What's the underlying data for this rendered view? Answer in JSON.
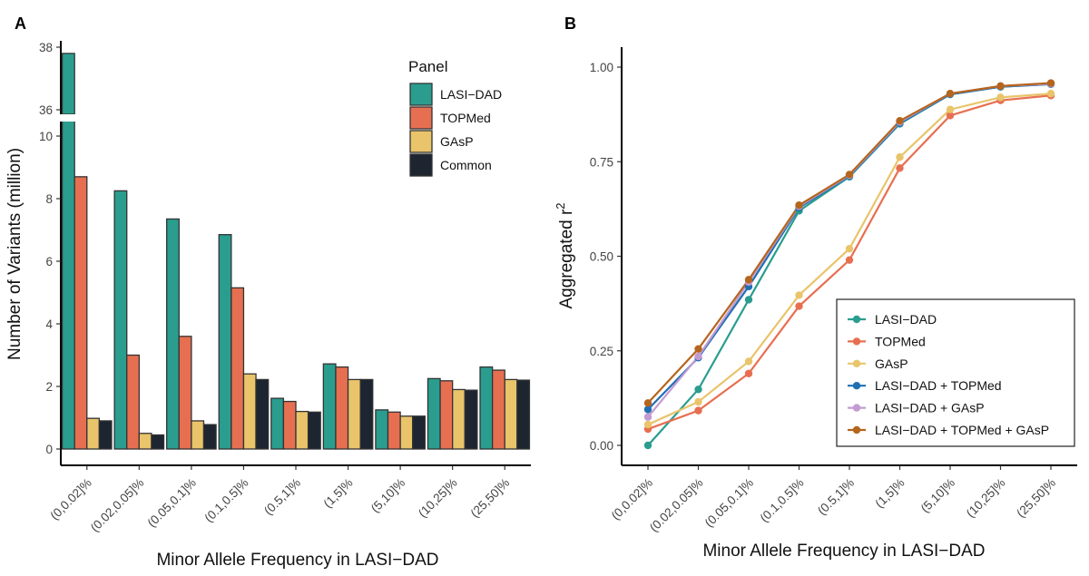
{
  "chart_data": [
    {
      "panel_label": "A",
      "type": "bar",
      "title": "",
      "xlabel": "Minor Allele Frequency in LASI−DAD",
      "ylabel": "Number of Variants (million)",
      "categories": [
        "(0,0.02]%",
        "(0.02,0.05]%",
        "(0.05,0.1]%",
        "(0.1,0.5]%",
        "(0.5,1]%",
        "(1,5]%",
        "(5,10]%",
        "(10,25]%",
        "(25,50]%"
      ],
      "axis_break": {
        "lower_ylim": [
          0,
          10.5
        ],
        "upper_ylim": [
          35.9,
          38.2
        ]
      },
      "yticks_lower": [
        "0",
        "2",
        "4",
        "6",
        "8",
        "10"
      ],
      "yticks_upper": [
        "36",
        "38"
      ],
      "legend_title": "Panel",
      "legend_position": "top-right",
      "series": [
        {
          "name": "LASI−DAD",
          "color": "#2a9d8f",
          "values": [
            37.8,
            8.25,
            7.35,
            6.85,
            1.62,
            2.72,
            1.25,
            2.25,
            2.62
          ]
        },
        {
          "name": "TOPMed",
          "color": "#e76f51",
          "values": [
            8.7,
            3.0,
            3.6,
            5.15,
            1.52,
            2.62,
            1.18,
            2.18,
            2.52
          ]
        },
        {
          "name": "GAsP",
          "color": "#e9c46a",
          "values": [
            0.98,
            0.5,
            0.9,
            2.4,
            1.2,
            2.22,
            1.05,
            1.9,
            2.22
          ]
        },
        {
          "name": "Common",
          "color": "#1c2530",
          "values": [
            0.9,
            0.45,
            0.78,
            2.22,
            1.18,
            2.22,
            1.05,
            1.88,
            2.2
          ]
        }
      ]
    },
    {
      "panel_label": "B",
      "type": "line",
      "title": "",
      "xlabel": "Minor Allele Frequency in LASI−DAD",
      "ylabel": "Aggregated r",
      "ylabel_superscript": "2",
      "categories": [
        "(0,0.02]%",
        "(0.02,0.05]%",
        "(0.05,0.1]%",
        "(0.1,0.5]%",
        "(0.5,1]%",
        "(1,5]%",
        "(5,10]%",
        "(10,25]%",
        "(25,50]%"
      ],
      "ylim": [
        -0.05,
        1.05
      ],
      "yticks": [
        "0.00",
        "0.25",
        "0.50",
        "0.75",
        "1.00"
      ],
      "legend_position": "bottom-right",
      "series": [
        {
          "name": "LASI−DAD",
          "color": "#2a9d8f",
          "values": [
            0.0,
            0.148,
            0.385,
            0.62,
            0.71,
            0.85,
            0.928,
            0.948,
            0.955
          ]
        },
        {
          "name": "TOPMed",
          "color": "#e76f51",
          "values": [
            0.043,
            0.092,
            0.19,
            0.368,
            0.49,
            0.733,
            0.872,
            0.912,
            0.925
          ]
        },
        {
          "name": "GAsP",
          "color": "#e9c46a",
          "values": [
            0.055,
            0.115,
            0.222,
            0.397,
            0.52,
            0.762,
            0.888,
            0.92,
            0.93
          ]
        },
        {
          "name": "LASI−DAD + TOPMed",
          "color": "#1f6fb2",
          "values": [
            0.095,
            0.232,
            0.42,
            0.628,
            0.712,
            0.852,
            0.928,
            0.948,
            0.955
          ]
        },
        {
          "name": "LASI−DAD + GAsP",
          "color": "#c39bd3",
          "values": [
            0.075,
            0.235,
            0.432,
            0.632,
            0.714,
            0.855,
            0.93,
            0.95,
            0.956
          ]
        },
        {
          "name": "LASI−DAD + TOPMed + GAsP",
          "color": "#b5651d",
          "values": [
            0.112,
            0.255,
            0.438,
            0.635,
            0.716,
            0.858,
            0.93,
            0.95,
            0.958
          ]
        }
      ]
    }
  ]
}
